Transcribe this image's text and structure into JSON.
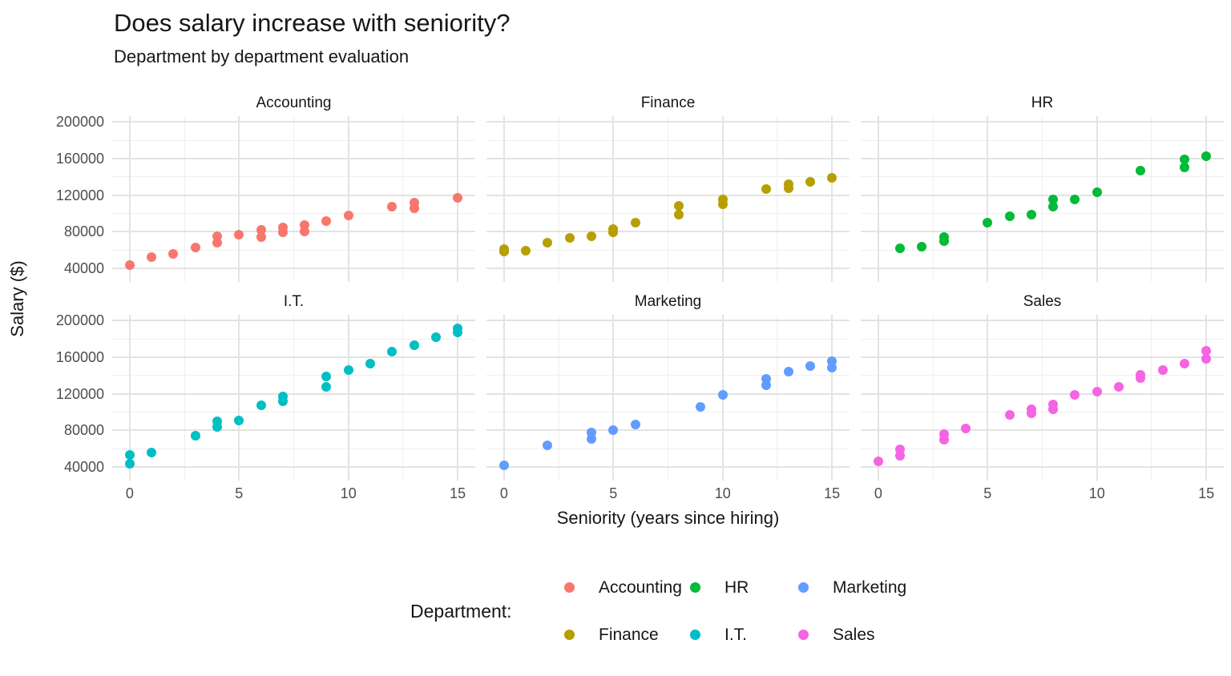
{
  "title": "Does salary increase with seniority?",
  "subtitle": "Department by department evaluation",
  "axes": {
    "y_label": "Salary ($)",
    "x_label": "Seniority (years since hiring)",
    "y_tick_values": [
      200000,
      160000,
      120000,
      80000,
      40000
    ],
    "y_tick_labels": [
      "200000",
      "160000",
      "120000",
      "80000",
      "40000"
    ],
    "x_tick_values": [
      0,
      5,
      10,
      15
    ],
    "x_tick_labels": [
      "0",
      "5",
      "10",
      "15"
    ]
  },
  "legend": {
    "label": "Department:",
    "entries": [
      {
        "label": "Accounting",
        "color": "#F8766D"
      },
      {
        "label": "HR",
        "color": "#00BA38"
      },
      {
        "label": "Marketing",
        "color": "#619CFF"
      },
      {
        "label": "Finance",
        "color": "#B79F00"
      },
      {
        "label": "I.T.",
        "color": "#00BFC4"
      },
      {
        "label": "Sales",
        "color": "#F564E3"
      }
    ]
  },
  "chart_data": {
    "type": "scatter",
    "title": "Does salary increase with seniority?",
    "subtitle": "Department by department evaluation",
    "xlabel": "Seniority (years since hiring)",
    "ylabel": "Salary ($)",
    "x_domain": [
      -0.8,
      15.8
    ],
    "y_domain": [
      25000,
      206500
    ],
    "grid": {
      "major_x": [
        0,
        5,
        10,
        15
      ],
      "minor_x": [
        2.5,
        7.5,
        12.5
      ],
      "major_y": [
        40000,
        80000,
        120000,
        160000,
        200000
      ],
      "minor_y": [
        60000,
        100000,
        140000,
        180000
      ]
    },
    "facets": [
      {
        "title": "Accounting",
        "color": "#F8766D",
        "points": [
          [
            0,
            43000
          ],
          [
            1,
            52000
          ],
          [
            2,
            56000
          ],
          [
            3,
            63000
          ],
          [
            4,
            68000
          ],
          [
            4,
            75000
          ],
          [
            5,
            77000
          ],
          [
            6,
            74000
          ],
          [
            6,
            82000
          ],
          [
            7,
            79000
          ],
          [
            7,
            85000
          ],
          [
            8,
            80000
          ],
          [
            8,
            87000
          ],
          [
            9,
            92000
          ],
          [
            10,
            98000
          ],
          [
            12,
            107000
          ],
          [
            13,
            106000
          ],
          [
            13,
            112000
          ],
          [
            15,
            117000
          ]
        ]
      },
      {
        "title": "Finance",
        "color": "#B79F00",
        "points": [
          [
            0,
            58000
          ],
          [
            0,
            61000
          ],
          [
            1,
            59000
          ],
          [
            2,
            68000
          ],
          [
            3,
            73000
          ],
          [
            4,
            75000
          ],
          [
            5,
            79000
          ],
          [
            5,
            83000
          ],
          [
            6,
            90000
          ],
          [
            8,
            99000
          ],
          [
            8,
            108000
          ],
          [
            10,
            110000
          ],
          [
            10,
            115000
          ],
          [
            12,
            127000
          ],
          [
            13,
            128000
          ],
          [
            13,
            132000
          ],
          [
            14,
            135000
          ],
          [
            15,
            139000
          ]
        ]
      },
      {
        "title": "HR",
        "color": "#00BA38",
        "points": [
          [
            1,
            62000
          ],
          [
            2,
            64000
          ],
          [
            3,
            70000
          ],
          [
            3,
            74000
          ],
          [
            5,
            90000
          ],
          [
            6,
            97000
          ],
          [
            7,
            99000
          ],
          [
            8,
            107000
          ],
          [
            8,
            115000
          ],
          [
            9,
            115000
          ],
          [
            10,
            123000
          ],
          [
            12,
            147000
          ],
          [
            14,
            150000
          ],
          [
            14,
            159000
          ],
          [
            15,
            163000
          ]
        ]
      },
      {
        "title": "I.T.",
        "color": "#00BFC4",
        "points": [
          [
            0,
            43000
          ],
          [
            0,
            53000
          ],
          [
            1,
            56000
          ],
          [
            3,
            74000
          ],
          [
            4,
            84000
          ],
          [
            4,
            90000
          ],
          [
            5,
            91000
          ],
          [
            6,
            107000
          ],
          [
            7,
            112000
          ],
          [
            7,
            117000
          ],
          [
            9,
            128000
          ],
          [
            9,
            139000
          ],
          [
            10,
            146000
          ],
          [
            11,
            153000
          ],
          [
            12,
            166000
          ],
          [
            13,
            173000
          ],
          [
            14,
            182000
          ],
          [
            15,
            187000
          ],
          [
            15,
            192000
          ]
        ]
      },
      {
        "title": "Marketing",
        "color": "#619CFF",
        "points": [
          [
            0,
            42000
          ],
          [
            2,
            64000
          ],
          [
            4,
            71000
          ],
          [
            4,
            78000
          ],
          [
            5,
            80000
          ],
          [
            6,
            86000
          ],
          [
            9,
            106000
          ],
          [
            10,
            119000
          ],
          [
            12,
            129000
          ],
          [
            12,
            136000
          ],
          [
            13,
            144000
          ],
          [
            14,
            150000
          ],
          [
            15,
            149000
          ],
          [
            15,
            156000
          ]
        ]
      },
      {
        "title": "Sales",
        "color": "#F564E3",
        "points": [
          [
            0,
            46000
          ],
          [
            1,
            52000
          ],
          [
            1,
            59000
          ],
          [
            3,
            70000
          ],
          [
            3,
            76000
          ],
          [
            4,
            82000
          ],
          [
            6,
            97000
          ],
          [
            7,
            99000
          ],
          [
            7,
            103000
          ],
          [
            8,
            103000
          ],
          [
            8,
            108000
          ],
          [
            9,
            119000
          ],
          [
            10,
            122000
          ],
          [
            11,
            128000
          ],
          [
            12,
            137000
          ],
          [
            12,
            141000
          ],
          [
            13,
            146000
          ],
          [
            14,
            153000
          ],
          [
            15,
            158000
          ],
          [
            15,
            167000
          ]
        ]
      }
    ]
  }
}
